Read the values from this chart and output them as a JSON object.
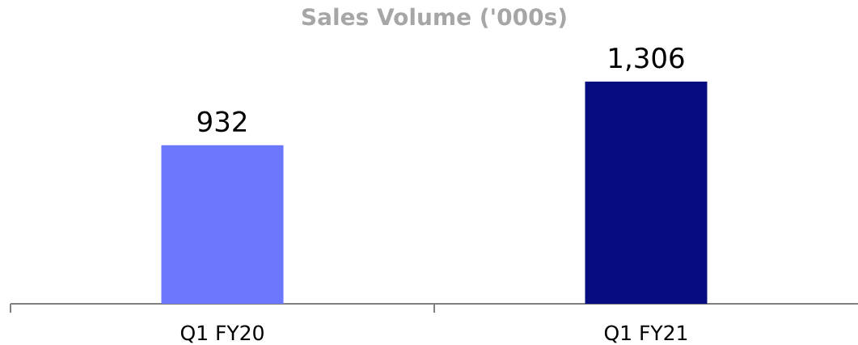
{
  "chart_data": {
    "type": "bar",
    "title": "Sales Volume ('000s)",
    "categories": [
      "Q1 FY20",
      "Q1 FY21"
    ],
    "values": [
      932,
      1306
    ],
    "colors": [
      "#6b78fd",
      "#050d80"
    ],
    "value_labels": [
      "932",
      "1,306"
    ],
    "tick_labels": "x"
  }
}
